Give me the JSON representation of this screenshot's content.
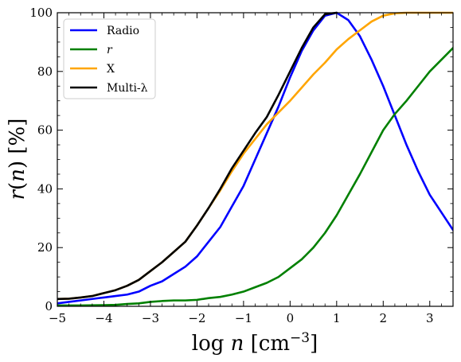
{
  "chart_data": {
    "type": "line",
    "title": "",
    "xlabel": "log n [cm^-3]",
    "ylabel": "r(n) [%]",
    "xlim": [
      -5,
      3.5
    ],
    "ylim": [
      0,
      100
    ],
    "xticks": [
      -5,
      -4,
      -3,
      -2,
      -1,
      0,
      1,
      2,
      3
    ],
    "yticks": [
      0,
      20,
      40,
      60,
      80,
      100
    ],
    "grid": false,
    "legend_position": "top-left",
    "series": [
      {
        "name": "Radio",
        "color": "#0000ff",
        "points": [
          [
            -5,
            1
          ],
          [
            -4.75,
            1.5
          ],
          [
            -4.5,
            2
          ],
          [
            -4.25,
            2.5
          ],
          [
            -4,
            3
          ],
          [
            -3.75,
            3.5
          ],
          [
            -3.5,
            4
          ],
          [
            -3.25,
            5
          ],
          [
            -3,
            7
          ],
          [
            -2.75,
            8.5
          ],
          [
            -2.5,
            11
          ],
          [
            -2.25,
            13.5
          ],
          [
            -2,
            17
          ],
          [
            -1.75,
            22
          ],
          [
            -1.5,
            27
          ],
          [
            -1.25,
            34
          ],
          [
            -1,
            41
          ],
          [
            -0.75,
            50
          ],
          [
            -0.5,
            59
          ],
          [
            -0.25,
            68
          ],
          [
            0,
            78
          ],
          [
            0.25,
            87
          ],
          [
            0.5,
            94
          ],
          [
            0.75,
            99
          ],
          [
            1,
            100
          ],
          [
            1.25,
            97.5
          ],
          [
            1.5,
            92
          ],
          [
            1.75,
            84
          ],
          [
            2,
            75
          ],
          [
            2.25,
            65
          ],
          [
            2.5,
            55
          ],
          [
            2.75,
            46
          ],
          [
            3,
            38
          ],
          [
            3.25,
            32
          ],
          [
            3.5,
            26
          ]
        ]
      },
      {
        "name": "r",
        "color": "#008000",
        "points": [
          [
            -5,
            0.3
          ],
          [
            -4.5,
            0.3
          ],
          [
            -4,
            0.4
          ],
          [
            -3.75,
            0.5
          ],
          [
            -3.5,
            0.8
          ],
          [
            -3.25,
            1
          ],
          [
            -3,
            1.5
          ],
          [
            -2.75,
            1.8
          ],
          [
            -2.5,
            2
          ],
          [
            -2.25,
            2
          ],
          [
            -2,
            2.2
          ],
          [
            -1.75,
            2.8
          ],
          [
            -1.5,
            3.2
          ],
          [
            -1.25,
            4
          ],
          [
            -1,
            5
          ],
          [
            -0.75,
            6.5
          ],
          [
            -0.5,
            8
          ],
          [
            -0.25,
            10
          ],
          [
            0,
            13
          ],
          [
            0.25,
            16
          ],
          [
            0.5,
            20
          ],
          [
            0.75,
            25
          ],
          [
            1,
            31
          ],
          [
            1.25,
            38
          ],
          [
            1.5,
            45
          ],
          [
            1.75,
            52.5
          ],
          [
            2,
            60
          ],
          [
            2.25,
            65.5
          ],
          [
            2.5,
            70
          ],
          [
            2.75,
            75
          ],
          [
            3,
            80
          ],
          [
            3.25,
            84
          ],
          [
            3.5,
            88
          ]
        ]
      },
      {
        "name": "X",
        "color": "#ffa500",
        "points": [
          [
            -5,
            2.5
          ],
          [
            -4.75,
            2.6
          ],
          [
            -4.5,
            3
          ],
          [
            -4.25,
            3.5
          ],
          [
            -4,
            4.5
          ],
          [
            -3.75,
            5.5
          ],
          [
            -3.5,
            7
          ],
          [
            -3.25,
            9
          ],
          [
            -3,
            12
          ],
          [
            -2.75,
            15
          ],
          [
            -2.5,
            18.5
          ],
          [
            -2.25,
            22
          ],
          [
            -2,
            27.5
          ],
          [
            -1.75,
            33.5
          ],
          [
            -1.5,
            39.5
          ],
          [
            -1.25,
            46
          ],
          [
            -1,
            52
          ],
          [
            -0.75,
            57
          ],
          [
            -0.5,
            62
          ],
          [
            -0.25,
            66
          ],
          [
            0,
            70
          ],
          [
            0.25,
            74.5
          ],
          [
            0.5,
            79
          ],
          [
            0.75,
            83
          ],
          [
            1,
            87.5
          ],
          [
            1.25,
            91
          ],
          [
            1.5,
            94
          ],
          [
            1.75,
            97
          ],
          [
            2,
            99
          ],
          [
            2.25,
            99.8
          ],
          [
            2.5,
            100
          ],
          [
            3,
            100
          ],
          [
            3.5,
            100
          ]
        ]
      },
      {
        "name": "Multi-λ",
        "color": "#000000",
        "points": [
          [
            -5,
            2.5
          ],
          [
            -4.75,
            2.6
          ],
          [
            -4.5,
            3
          ],
          [
            -4.25,
            3.5
          ],
          [
            -4,
            4.5
          ],
          [
            -3.75,
            5.5
          ],
          [
            -3.5,
            7
          ],
          [
            -3.25,
            9
          ],
          [
            -3,
            12
          ],
          [
            -2.75,
            15
          ],
          [
            -2.5,
            18.5
          ],
          [
            -2.25,
            22
          ],
          [
            -2,
            27.5
          ],
          [
            -1.75,
            33.5
          ],
          [
            -1.5,
            40
          ],
          [
            -1.25,
            47
          ],
          [
            -1,
            53
          ],
          [
            -0.75,
            59
          ],
          [
            -0.5,
            64.5
          ],
          [
            -0.25,
            72
          ],
          [
            0,
            80
          ],
          [
            0.25,
            88
          ],
          [
            0.5,
            95
          ],
          [
            0.75,
            99.5
          ],
          [
            1,
            100
          ]
        ]
      }
    ]
  }
}
